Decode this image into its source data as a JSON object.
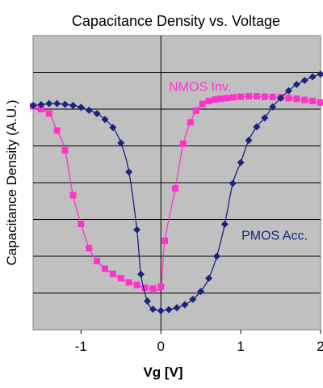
{
  "chart_data": {
    "type": "scatter",
    "title": "Capacitance Density vs. Voltage",
    "xlabel": "Vg [V]",
    "ylabel": "Capacitance Density (A.U.)",
    "xlim": [
      -1.6,
      2.0
    ],
    "ylim": [
      0,
      8
    ],
    "xticks": [
      -1,
      0,
      1,
      2
    ],
    "xtick_labels": [
      "-1",
      "0",
      "1",
      "2"
    ],
    "ygrid": [
      1,
      2,
      3,
      4,
      5,
      6,
      7
    ],
    "grid": true,
    "background": "#c0c0c0",
    "series": [
      {
        "name": "NMOS Inv.",
        "color": "#ff33cc",
        "marker": "square",
        "x": [
          -1.6,
          -1.5,
          -1.4,
          -1.3,
          -1.2,
          -1.1,
          -1.0,
          -0.9,
          -0.8,
          -0.7,
          -0.6,
          -0.5,
          -0.4,
          -0.3,
          -0.2,
          -0.1,
          -0.0,
          0.05,
          0.18,
          0.28,
          0.37,
          0.44,
          0.52,
          0.6,
          0.68,
          0.75,
          0.83,
          0.91,
          1.0,
          1.1,
          1.2,
          1.3,
          1.4,
          1.5,
          1.6,
          1.7,
          1.8,
          1.9,
          2.0
        ],
        "y": [
          6.08,
          6.0,
          5.88,
          5.42,
          4.88,
          3.66,
          2.88,
          2.22,
          1.87,
          1.66,
          1.52,
          1.4,
          1.29,
          1.22,
          1.14,
          1.12,
          1.17,
          2.42,
          3.84,
          5.06,
          5.64,
          5.96,
          6.14,
          6.22,
          6.26,
          6.28,
          6.3,
          6.32,
          6.34,
          6.35,
          6.35,
          6.34,
          6.33,
          6.32,
          6.3,
          6.28,
          6.25,
          6.22,
          6.18
        ]
      },
      {
        "name": "PMOS Acc.",
        "color": "#1a237e",
        "marker": "diamond",
        "x": [
          -1.6,
          -1.5,
          -1.4,
          -1.3,
          -1.2,
          -1.1,
          -1.0,
          -0.9,
          -0.8,
          -0.7,
          -0.6,
          -0.5,
          -0.4,
          -0.3,
          -0.25,
          -0.17,
          -0.1,
          0.0,
          0.1,
          0.2,
          0.3,
          0.4,
          0.5,
          0.6,
          0.7,
          0.8,
          0.9,
          1.0,
          1.1,
          1.2,
          1.3,
          1.4,
          1.5,
          1.6,
          1.7,
          1.8,
          1.9,
          2.0
        ],
        "y": [
          6.1,
          6.12,
          6.15,
          6.15,
          6.13,
          6.1,
          6.05,
          5.97,
          5.88,
          5.72,
          5.5,
          5.08,
          4.29,
          2.72,
          1.51,
          0.78,
          0.56,
          0.52,
          0.55,
          0.6,
          0.68,
          0.83,
          1.04,
          1.4,
          2.0,
          2.87,
          3.98,
          4.55,
          5.15,
          5.52,
          5.76,
          6.06,
          6.3,
          6.5,
          6.67,
          6.78,
          6.88,
          6.95
        ]
      }
    ],
    "annotations": [
      {
        "text": "NMOS Inv.",
        "x": 0.1,
        "y": 6.5,
        "series": 0
      },
      {
        "text": "PMOS Acc.",
        "x": 1.01,
        "y": 2.45,
        "series": 1
      }
    ]
  }
}
